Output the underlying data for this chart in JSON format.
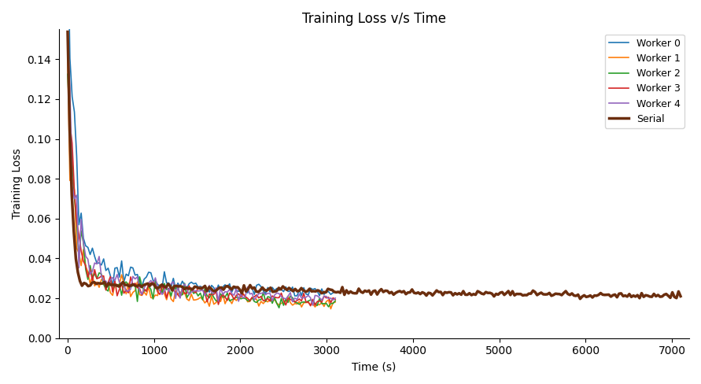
{
  "title": "Training Loss v/s Time",
  "xlabel": "Time (s)",
  "ylabel": "Training Loss",
  "worker_colors": [
    "#1f77b4",
    "#ff7f0e",
    "#2ca02c",
    "#d62728",
    "#9467bd"
  ],
  "serial_color": "#6b2e0e",
  "serial_linewidth": 2.5,
  "worker_linewidth": 1.2,
  "legend_labels": [
    "Worker 0",
    "Worker 1",
    "Worker 2",
    "Worker 3",
    "Worker 4",
    "Serial"
  ],
  "xlim": [
    -100,
    7200
  ],
  "ylim": [
    0.0,
    0.155
  ],
  "figsize": [
    8.91,
    4.88
  ],
  "dpi": 100
}
